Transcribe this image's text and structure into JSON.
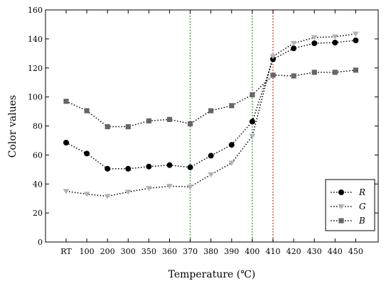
{
  "chart_data": {
    "type": "line",
    "title": "",
    "xlabel": "Temperature (℃)",
    "ylabel": "Color values",
    "categories": [
      "RT",
      "100",
      "200",
      "300",
      "350",
      "360",
      "370",
      "380",
      "390",
      "400",
      "410",
      "420",
      "430",
      "440",
      "450"
    ],
    "yticks": [
      "0",
      "20",
      "40",
      "60",
      "80",
      "100",
      "120",
      "140",
      "160"
    ],
    "ylim": [
      0,
      160
    ],
    "grid": false,
    "legend_position": "bottom-right",
    "series": [
      {
        "name": "R",
        "marker": "circle",
        "color": "#000000",
        "values": [
          68.5,
          61,
          50.5,
          50.5,
          52,
          53,
          51.5,
          59.5,
          67,
          83,
          126,
          133.5,
          137,
          137.5,
          139
        ]
      },
      {
        "name": "G",
        "marker": "triangle-down",
        "color": "#b3b3b3",
        "values": [
          35,
          33,
          31.5,
          34.5,
          37,
          38.5,
          38,
          46.5,
          54.5,
          73,
          128,
          137,
          141,
          141.5,
          143.5
        ]
      },
      {
        "name": "B",
        "marker": "square",
        "color": "#666666",
        "values": [
          97,
          90.5,
          79.5,
          79.5,
          83.5,
          84.5,
          81.5,
          90.5,
          94,
          101.5,
          115,
          114.5,
          117,
          117,
          118.5
        ]
      }
    ],
    "reference_lines": [
      {
        "category": "370",
        "color": "#2e9a2e"
      },
      {
        "category": "400",
        "color": "#2e9a2e"
      },
      {
        "category": "410",
        "color": "#c0392b"
      }
    ]
  }
}
